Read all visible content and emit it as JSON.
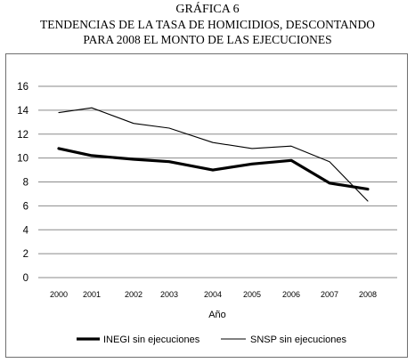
{
  "header": {
    "line1": "GRÁFICA 6",
    "line2": "TENDENCIAS DE LA TASA DE HOMICIDIOS,  DESCONTANDO",
    "line3": "PARA 2008 EL MONTO DE LAS EJECUCIONES"
  },
  "chart_data": {
    "type": "line",
    "title": "GRÁFICA 6 TENDENCIAS DE LA TASA DE HOMICIDIOS,  DESCONTANDO PARA 2008 EL MONTO DE LAS EJECUCIONES",
    "xlabel": "Año",
    "ylabel": "",
    "x": [
      2000,
      2001,
      2002,
      2003,
      2004,
      2005,
      2006,
      2007,
      2008
    ],
    "x_ticks": [
      "2000",
      "2001",
      "2002",
      "2003",
      "2004",
      "2005",
      "2006",
      "2007",
      "2008"
    ],
    "y_ticks": [
      0,
      2,
      4,
      6,
      8,
      10,
      12,
      14,
      16
    ],
    "ylim": [
      0,
      16
    ],
    "grid": "horizontal",
    "legend_position": "bottom",
    "series": [
      {
        "name": "INEGI  sin ejecuciones",
        "values": [
          10.8,
          10.2,
          9.9,
          9.7,
          9.0,
          9.5,
          9.8,
          7.9,
          7.4
        ],
        "color": "#000000",
        "style": "thick"
      },
      {
        "name": "SNSP sin ejecuciones",
        "values": [
          13.8,
          14.2,
          12.9,
          12.5,
          11.3,
          10.8,
          11.0,
          9.7,
          6.4
        ],
        "color": "#000000",
        "style": "thin"
      }
    ]
  }
}
